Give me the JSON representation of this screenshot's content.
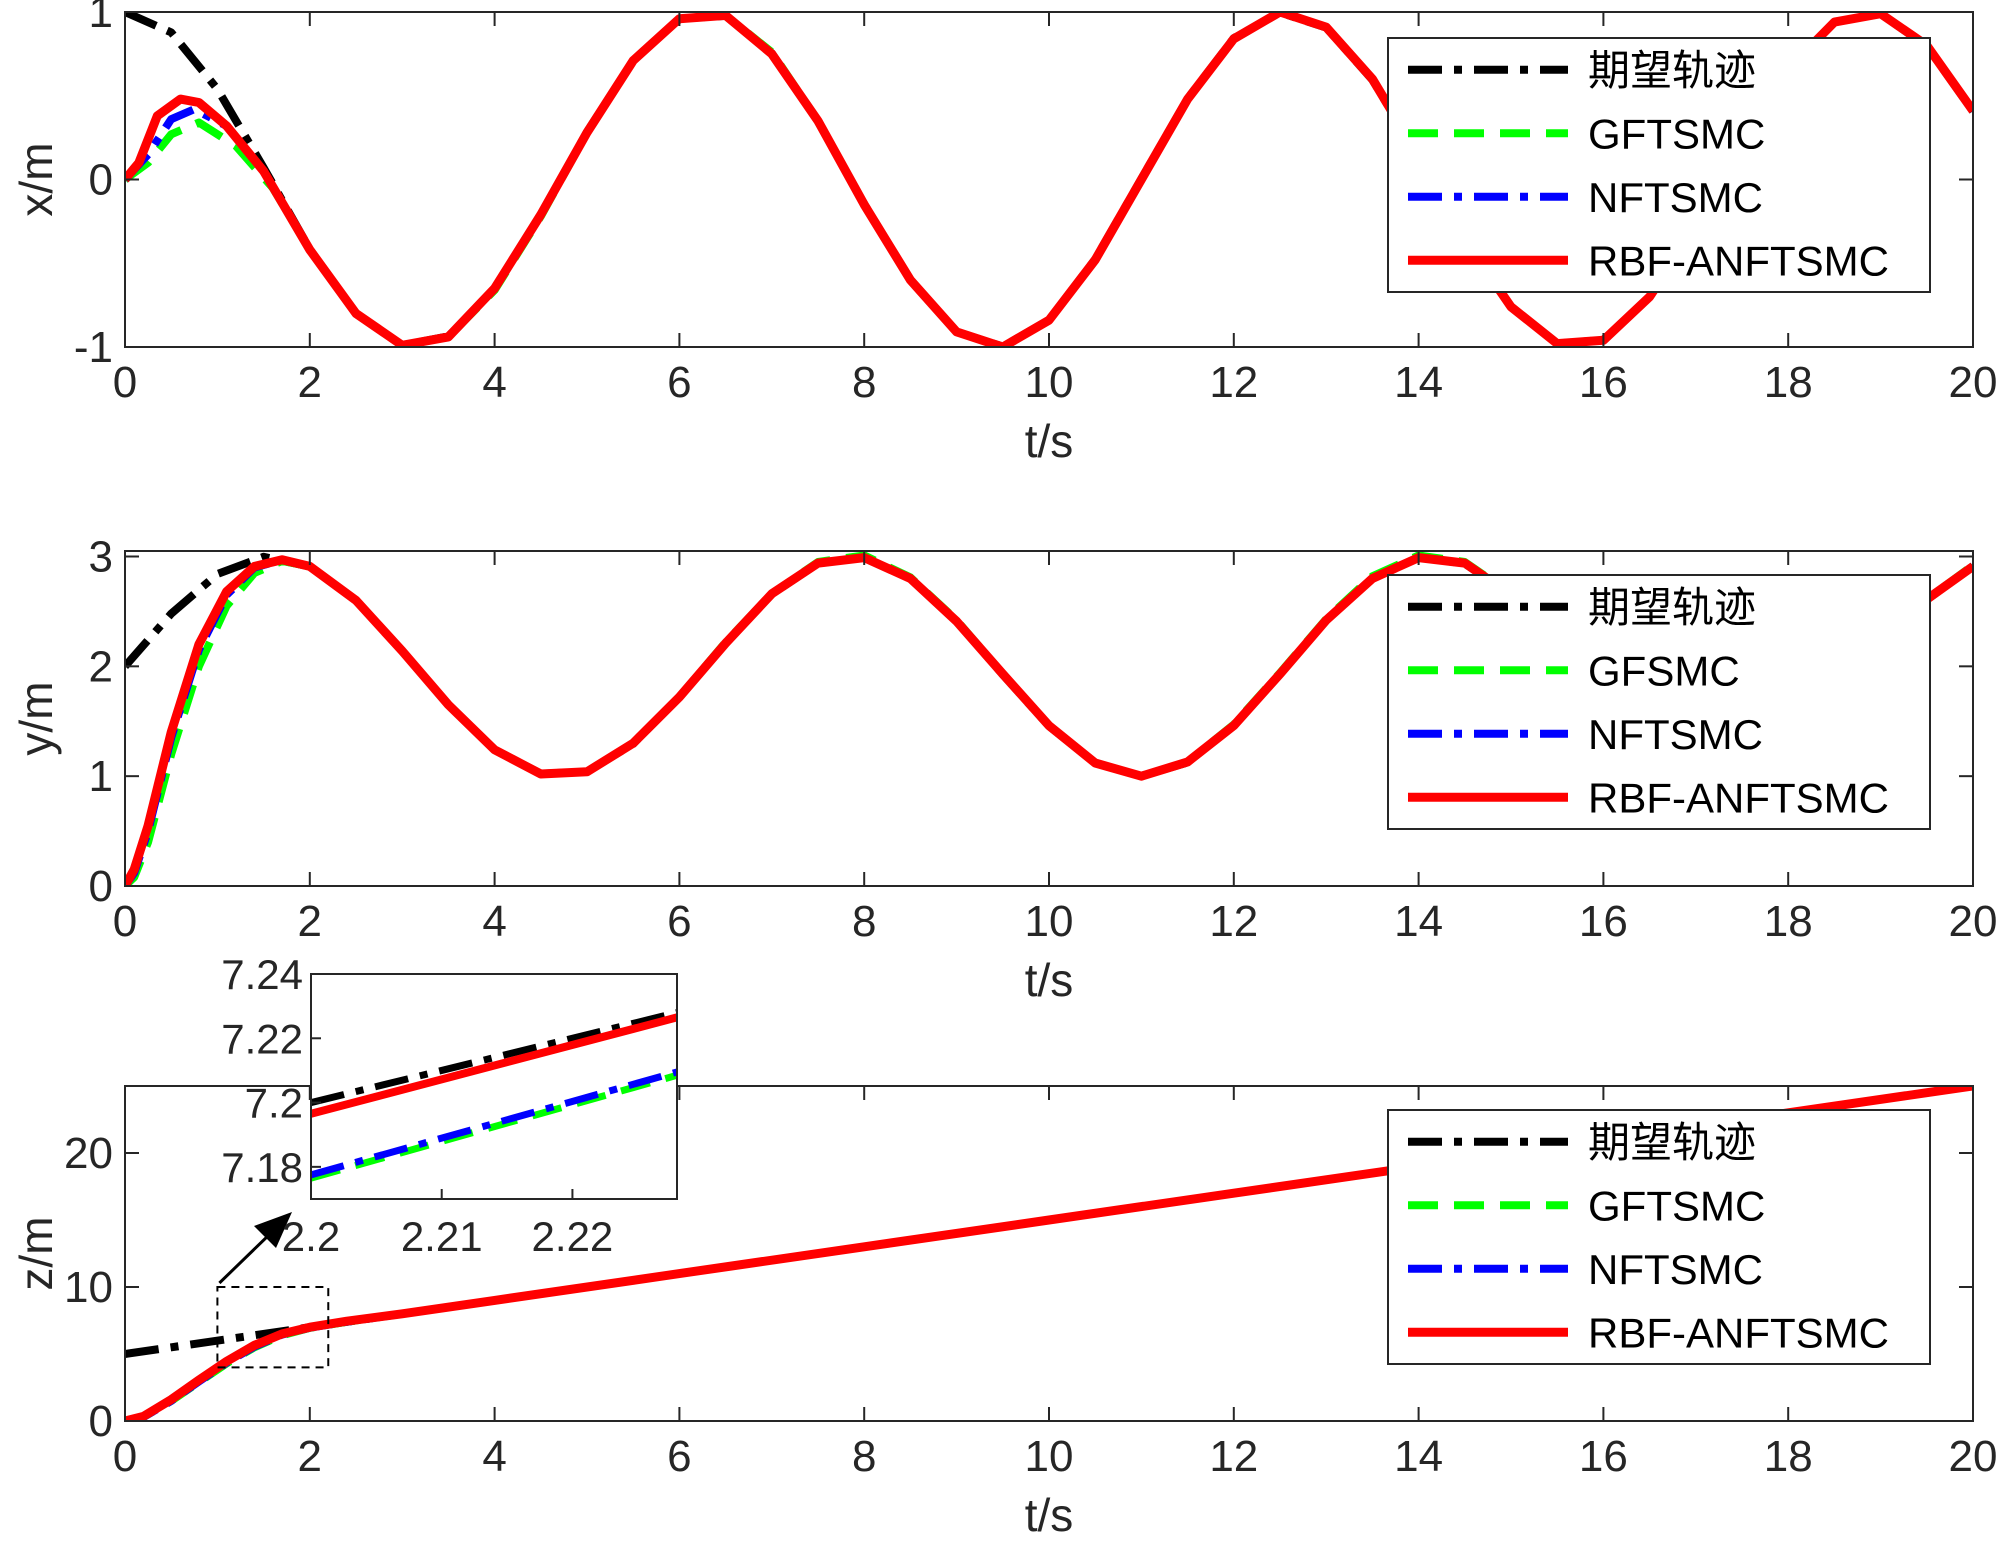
{
  "chart_data": [
    {
      "type": "line",
      "xlabel": "t/s",
      "ylabel": "x/m",
      "xlim": [
        0,
        20
      ],
      "ylim": [
        -1,
        1
      ],
      "xticks": [
        "0",
        "2",
        "4",
        "6",
        "8",
        "10",
        "12",
        "14",
        "16",
        "18",
        "20"
      ],
      "yticks": [
        "-1",
        "0",
        "1"
      ],
      "grid": false,
      "legend_position": "top-right",
      "series": [
        {
          "name": "期望轨迹",
          "color": "#000000",
          "style": "dash-dot",
          "x": [
            0,
            0.5,
            1,
            1.5,
            2,
            2.5,
            3,
            3.5,
            4,
            4.5,
            5,
            5.5,
            6,
            6.5,
            7,
            7.5,
            8,
            8.5,
            9,
            9.5,
            10,
            10.5,
            11,
            11.5,
            12,
            12.5,
            13,
            13.5,
            14,
            14.5,
            15,
            15.5,
            16,
            16.5,
            17,
            17.5,
            18,
            18.5,
            19,
            19.5,
            20
          ],
          "y": [
            1,
            0.878,
            0.54,
            0.071,
            -0.416,
            -0.801,
            -0.99,
            -0.936,
            -0.654,
            -0.211,
            0.284,
            0.709,
            0.96,
            0.977,
            0.754,
            0.347,
            -0.146,
            -0.602,
            -0.911,
            -0.997,
            -0.839,
            -0.476,
            0.004,
            0.483,
            0.844,
            0.997,
            0.907,
            0.595,
            0.137,
            -0.355,
            -0.76,
            -0.979,
            -0.958,
            -0.703,
            -0.275,
            0.22,
            0.66,
            0.939,
            0.989,
            0.796,
            0.408
          ]
        },
        {
          "name": "GFTSMC",
          "color": "#00ff00",
          "style": "dash",
          "x": [
            0,
            0.25,
            0.5,
            0.8,
            1.2,
            1.6,
            2,
            2.5,
            3,
            3.5,
            4,
            4.5,
            5,
            5.5,
            6,
            6.5,
            7,
            7.5,
            8,
            8.5,
            9,
            9.5,
            10,
            10.5,
            11,
            11.5,
            12,
            12.5,
            13,
            13.5,
            14,
            14.5,
            15,
            15.5,
            16,
            16.5,
            17,
            17.5,
            18,
            18.5,
            19,
            19.5,
            20
          ],
          "y": [
            0,
            0.1,
            0.27,
            0.34,
            0.2,
            -0.05,
            -0.42,
            -0.8,
            -0.99,
            -0.94,
            -0.66,
            -0.22,
            0.28,
            0.71,
            0.96,
            0.98,
            0.76,
            0.35,
            -0.15,
            -0.6,
            -0.91,
            -1.0,
            -0.84,
            -0.48,
            0.0,
            0.48,
            0.84,
            1.0,
            0.91,
            0.6,
            0.14,
            -0.36,
            -0.76,
            -0.98,
            -0.96,
            -0.7,
            -0.28,
            0.22,
            0.66,
            0.94,
            0.99,
            0.8,
            0.41
          ]
        },
        {
          "name": "NFTSMC",
          "color": "#0000ff",
          "style": "dash-dot",
          "x": [
            0,
            0.25,
            0.5,
            0.75,
            1.1,
            1.5,
            2,
            2.5,
            3,
            3.5,
            4,
            4.5,
            5,
            5.5,
            6,
            6.5,
            7,
            7.5,
            8,
            8.5,
            9,
            9.5,
            10,
            10.5,
            11,
            11.5,
            12,
            12.5,
            13,
            13.5,
            14,
            14.5,
            15,
            15.5,
            16,
            16.5,
            17,
            17.5,
            18,
            18.5,
            19,
            19.5,
            20
          ],
          "y": [
            0,
            0.15,
            0.36,
            0.42,
            0.32,
            0.05,
            -0.42,
            -0.8,
            -0.99,
            -0.94,
            -0.65,
            -0.21,
            0.28,
            0.71,
            0.96,
            0.98,
            0.75,
            0.35,
            -0.15,
            -0.6,
            -0.91,
            -1.0,
            -0.84,
            -0.48,
            0.0,
            0.48,
            0.84,
            1.0,
            0.91,
            0.6,
            0.14,
            -0.36,
            -0.76,
            -0.98,
            -0.96,
            -0.7,
            -0.28,
            0.22,
            0.66,
            0.94,
            0.99,
            0.8,
            0.41
          ]
        },
        {
          "name": "RBF-ANFTSMC",
          "color": "#ff0000",
          "style": "solid",
          "x": [
            0,
            0.15,
            0.35,
            0.6,
            0.8,
            1.1,
            1.5,
            2,
            2.5,
            3,
            3.5,
            4,
            4.5,
            5,
            5.5,
            6,
            6.5,
            7,
            7.5,
            8,
            8.5,
            9,
            9.5,
            10,
            10.5,
            11,
            11.5,
            12,
            12.5,
            13,
            13.5,
            14,
            14.5,
            15,
            15.5,
            16,
            16.5,
            17,
            17.5,
            18,
            18.5,
            19,
            19.5,
            20
          ],
          "y": [
            0,
            0.1,
            0.38,
            0.48,
            0.46,
            0.32,
            0.05,
            -0.42,
            -0.8,
            -0.99,
            -0.94,
            -0.65,
            -0.21,
            0.28,
            0.71,
            0.96,
            0.98,
            0.75,
            0.35,
            -0.15,
            -0.6,
            -0.91,
            -1.0,
            -0.84,
            -0.48,
            0.0,
            0.48,
            0.84,
            1.0,
            0.91,
            0.6,
            0.14,
            -0.36,
            -0.76,
            -0.98,
            -0.96,
            -0.7,
            -0.28,
            0.22,
            0.66,
            0.94,
            0.99,
            0.8,
            0.41
          ]
        }
      ]
    },
    {
      "type": "line",
      "xlabel": "t/s",
      "ylabel": "y/m",
      "xlim": [
        0,
        20
      ],
      "ylim": [
        0,
        3.05
      ],
      "xticks": [
        "0",
        "2",
        "4",
        "6",
        "8",
        "10",
        "12",
        "14",
        "16",
        "18",
        "20"
      ],
      "yticks": [
        "0",
        "1",
        "2",
        "3"
      ],
      "grid": false,
      "legend_position": "right",
      "series": [
        {
          "name": "期望轨迹",
          "color": "#000000",
          "style": "dash-dot",
          "x": [
            0,
            0.5,
            1,
            1.5,
            2,
            2.5,
            3,
            3.5,
            4,
            4.5,
            5,
            5.5,
            6,
            6.5,
            7,
            7.5,
            8,
            8.5,
            9,
            9.5,
            10,
            10.5,
            11,
            11.5,
            12,
            12.5,
            13,
            13.5,
            14,
            14.5,
            15,
            15.5,
            16,
            16.5,
            17,
            17.5,
            18,
            18.5,
            19,
            19.5,
            20
          ],
          "y": [
            2.0,
            2.479,
            2.841,
            2.997,
            2.909,
            2.598,
            2.141,
            1.649,
            1.243,
            1.022,
            1.041,
            1.295,
            1.721,
            2.215,
            2.657,
            2.938,
            2.989,
            2.798,
            2.412,
            1.925,
            1.456,
            1.121,
            1.0,
            1.125,
            1.463,
            1.934,
            2.42,
            2.803,
            2.991,
            2.935,
            2.65,
            2.206,
            1.712,
            1.288,
            1.039,
            1.024,
            1.249,
            1.657,
            2.15,
            2.606,
            2.913
          ]
        },
        {
          "name": "GFSMC",
          "color": "#00ff00",
          "style": "dash",
          "x": [
            0,
            0.1,
            0.25,
            0.5,
            0.8,
            1.1,
            1.4,
            1.7,
            2,
            2.5,
            3,
            3.5,
            4,
            4.5,
            5,
            5.5,
            6,
            6.5,
            7,
            7.5,
            8,
            8.5,
            9,
            9.5,
            10,
            10.5,
            11,
            11.5,
            12,
            12.5,
            13,
            13.5,
            14,
            14.5,
            15,
            15.5,
            16,
            16.5,
            17,
            17.5,
            18,
            18.5,
            19,
            19.5,
            20
          ],
          "y": [
            0,
            0.08,
            0.4,
            1.2,
            2.0,
            2.55,
            2.85,
            2.96,
            2.91,
            2.6,
            2.14,
            1.65,
            1.24,
            1.02,
            1.04,
            1.3,
            1.72,
            2.22,
            2.66,
            2.95,
            3.01,
            2.81,
            2.42,
            1.93,
            1.46,
            1.12,
            1.0,
            1.13,
            1.47,
            1.94,
            2.43,
            2.82,
            3.01,
            2.95,
            2.66,
            2.21,
            1.71,
            1.29,
            1.04,
            1.02,
            1.25,
            1.66,
            2.15,
            2.61,
            2.92
          ]
        },
        {
          "name": "NFTSMC",
          "color": "#0000ff",
          "style": "dash-dot",
          "x": [
            0,
            0.1,
            0.25,
            0.5,
            0.8,
            1.1,
            1.4,
            1.7,
            2,
            2.5,
            3,
            3.5,
            4,
            4.5,
            5,
            5.5,
            6,
            6.5,
            7,
            7.5,
            8,
            8.5,
            9,
            9.5,
            10,
            10.5,
            11,
            11.5,
            12,
            12.5,
            13,
            13.5,
            14,
            14.5,
            15,
            15.5,
            16,
            16.5,
            17,
            17.5,
            18,
            18.5,
            19,
            19.5,
            20
          ],
          "y": [
            0,
            0.12,
            0.5,
            1.35,
            2.15,
            2.65,
            2.9,
            2.97,
            2.91,
            2.6,
            2.14,
            1.65,
            1.24,
            1.02,
            1.04,
            1.3,
            1.72,
            2.21,
            2.66,
            2.94,
            2.99,
            2.8,
            2.41,
            1.93,
            1.46,
            1.12,
            1.0,
            1.13,
            1.46,
            1.93,
            2.42,
            2.8,
            2.99,
            2.94,
            2.65,
            2.21,
            1.71,
            1.29,
            1.04,
            1.02,
            1.25,
            1.66,
            2.15,
            2.61,
            2.91
          ]
        },
        {
          "name": "RBF-ANFTSMC",
          "color": "#ff0000",
          "style": "solid",
          "x": [
            0,
            0.1,
            0.25,
            0.5,
            0.8,
            1.1,
            1.4,
            1.7,
            2,
            2.5,
            3,
            3.5,
            4,
            4.5,
            5,
            5.5,
            6,
            6.5,
            7,
            7.5,
            8,
            8.5,
            9,
            9.5,
            10,
            10.5,
            11,
            11.5,
            12,
            12.5,
            13,
            13.5,
            14,
            14.5,
            15,
            15.5,
            16,
            16.5,
            17,
            17.5,
            18,
            18.5,
            19,
            19.5,
            20
          ],
          "y": [
            0,
            0.15,
            0.55,
            1.4,
            2.2,
            2.68,
            2.91,
            2.97,
            2.91,
            2.6,
            2.14,
            1.65,
            1.24,
            1.02,
            1.04,
            1.3,
            1.72,
            2.21,
            2.66,
            2.94,
            2.99,
            2.8,
            2.41,
            1.93,
            1.46,
            1.12,
            1.0,
            1.13,
            1.46,
            1.93,
            2.42,
            2.8,
            2.99,
            2.94,
            2.65,
            2.21,
            1.71,
            1.29,
            1.04,
            1.02,
            1.25,
            1.66,
            2.15,
            2.61,
            2.91
          ]
        }
      ]
    },
    {
      "type": "line",
      "xlabel": "t/s",
      "ylabel": "z/m",
      "xlim": [
        0,
        20
      ],
      "ylim": [
        0,
        25
      ],
      "xticks": [
        "0",
        "2",
        "4",
        "6",
        "8",
        "10",
        "12",
        "14",
        "16",
        "18",
        "20"
      ],
      "yticks": [
        "0",
        "10",
        "20"
      ],
      "grid": false,
      "legend_position": "right",
      "series": [
        {
          "name": "期望轨迹",
          "color": "#000000",
          "style": "dash-dot",
          "x": [
            0,
            2,
            4,
            6,
            8,
            10,
            12,
            14,
            16,
            18,
            20
          ],
          "y": [
            5,
            7,
            9,
            11,
            13,
            15,
            17,
            19,
            21,
            23,
            25
          ]
        },
        {
          "name": "GFTSMC",
          "color": "#00ff00",
          "style": "dash",
          "x": [
            0,
            0.2,
            0.5,
            0.8,
            1.1,
            1.4,
            1.7,
            2.0,
            2.4,
            3,
            4,
            6,
            8,
            10,
            12,
            14,
            16,
            18,
            20
          ],
          "y": [
            0,
            0.3,
            1.5,
            2.9,
            4.3,
            5.5,
            6.4,
            6.95,
            7.4,
            8.0,
            9.0,
            11,
            13,
            15,
            17,
            19,
            21,
            23,
            25
          ]
        },
        {
          "name": "NFTSMC",
          "color": "#0000ff",
          "style": "dash-dot",
          "x": [
            0,
            0.2,
            0.5,
            0.8,
            1.1,
            1.4,
            1.7,
            2.0,
            2.4,
            3,
            4,
            6,
            8,
            10,
            12,
            14,
            16,
            18,
            20
          ],
          "y": [
            0,
            0.3,
            1.5,
            2.95,
            4.35,
            5.55,
            6.45,
            6.96,
            7.4,
            8.0,
            9.0,
            11,
            13,
            15,
            17,
            19,
            21,
            23,
            25
          ]
        },
        {
          "name": "RBF-ANFTSMC",
          "color": "#ff0000",
          "style": "solid",
          "x": [
            0,
            0.2,
            0.5,
            0.8,
            1.1,
            1.4,
            1.7,
            2.0,
            2.4,
            3,
            4,
            6,
            8,
            10,
            12,
            14,
            16,
            18,
            20
          ],
          "y": [
            0,
            0.35,
            1.6,
            3.05,
            4.45,
            5.65,
            6.5,
            7.0,
            7.45,
            8.0,
            9.0,
            11,
            13,
            15,
            17,
            19,
            21,
            23,
            25
          ]
        }
      ],
      "zoom_box": {
        "x": [
          1.0,
          2.2
        ],
        "y": [
          4,
          10
        ]
      },
      "inset": {
        "xlim": [
          2.2,
          2.228
        ],
        "ylim": [
          7.17,
          7.24
        ],
        "xticks": [
          "2.2",
          "2.21",
          "2.22"
        ],
        "yticks": [
          "7.18",
          "7.2",
          "7.22",
          "7.24"
        ],
        "series": [
          {
            "name": "期望轨迹",
            "color": "#000000",
            "style": "dash-dot",
            "x": [
              2.2,
              2.228
            ],
            "y": [
              7.2,
              7.228
            ]
          },
          {
            "name": "GFTSMC",
            "color": "#00ff00",
            "style": "dash",
            "x": [
              2.2,
              2.228
            ],
            "y": [
              7.1765,
              7.2085
            ]
          },
          {
            "name": "NFTSMC",
            "color": "#0000ff",
            "style": "dash-dot",
            "x": [
              2.2,
              2.228
            ],
            "y": [
              7.1775,
              7.2095
            ]
          },
          {
            "name": "RBF-ANFTSMC",
            "color": "#ff0000",
            "style": "solid",
            "x": [
              2.2,
              2.228
            ],
            "y": [
              7.1965,
              7.2265
            ]
          }
        ]
      }
    }
  ]
}
